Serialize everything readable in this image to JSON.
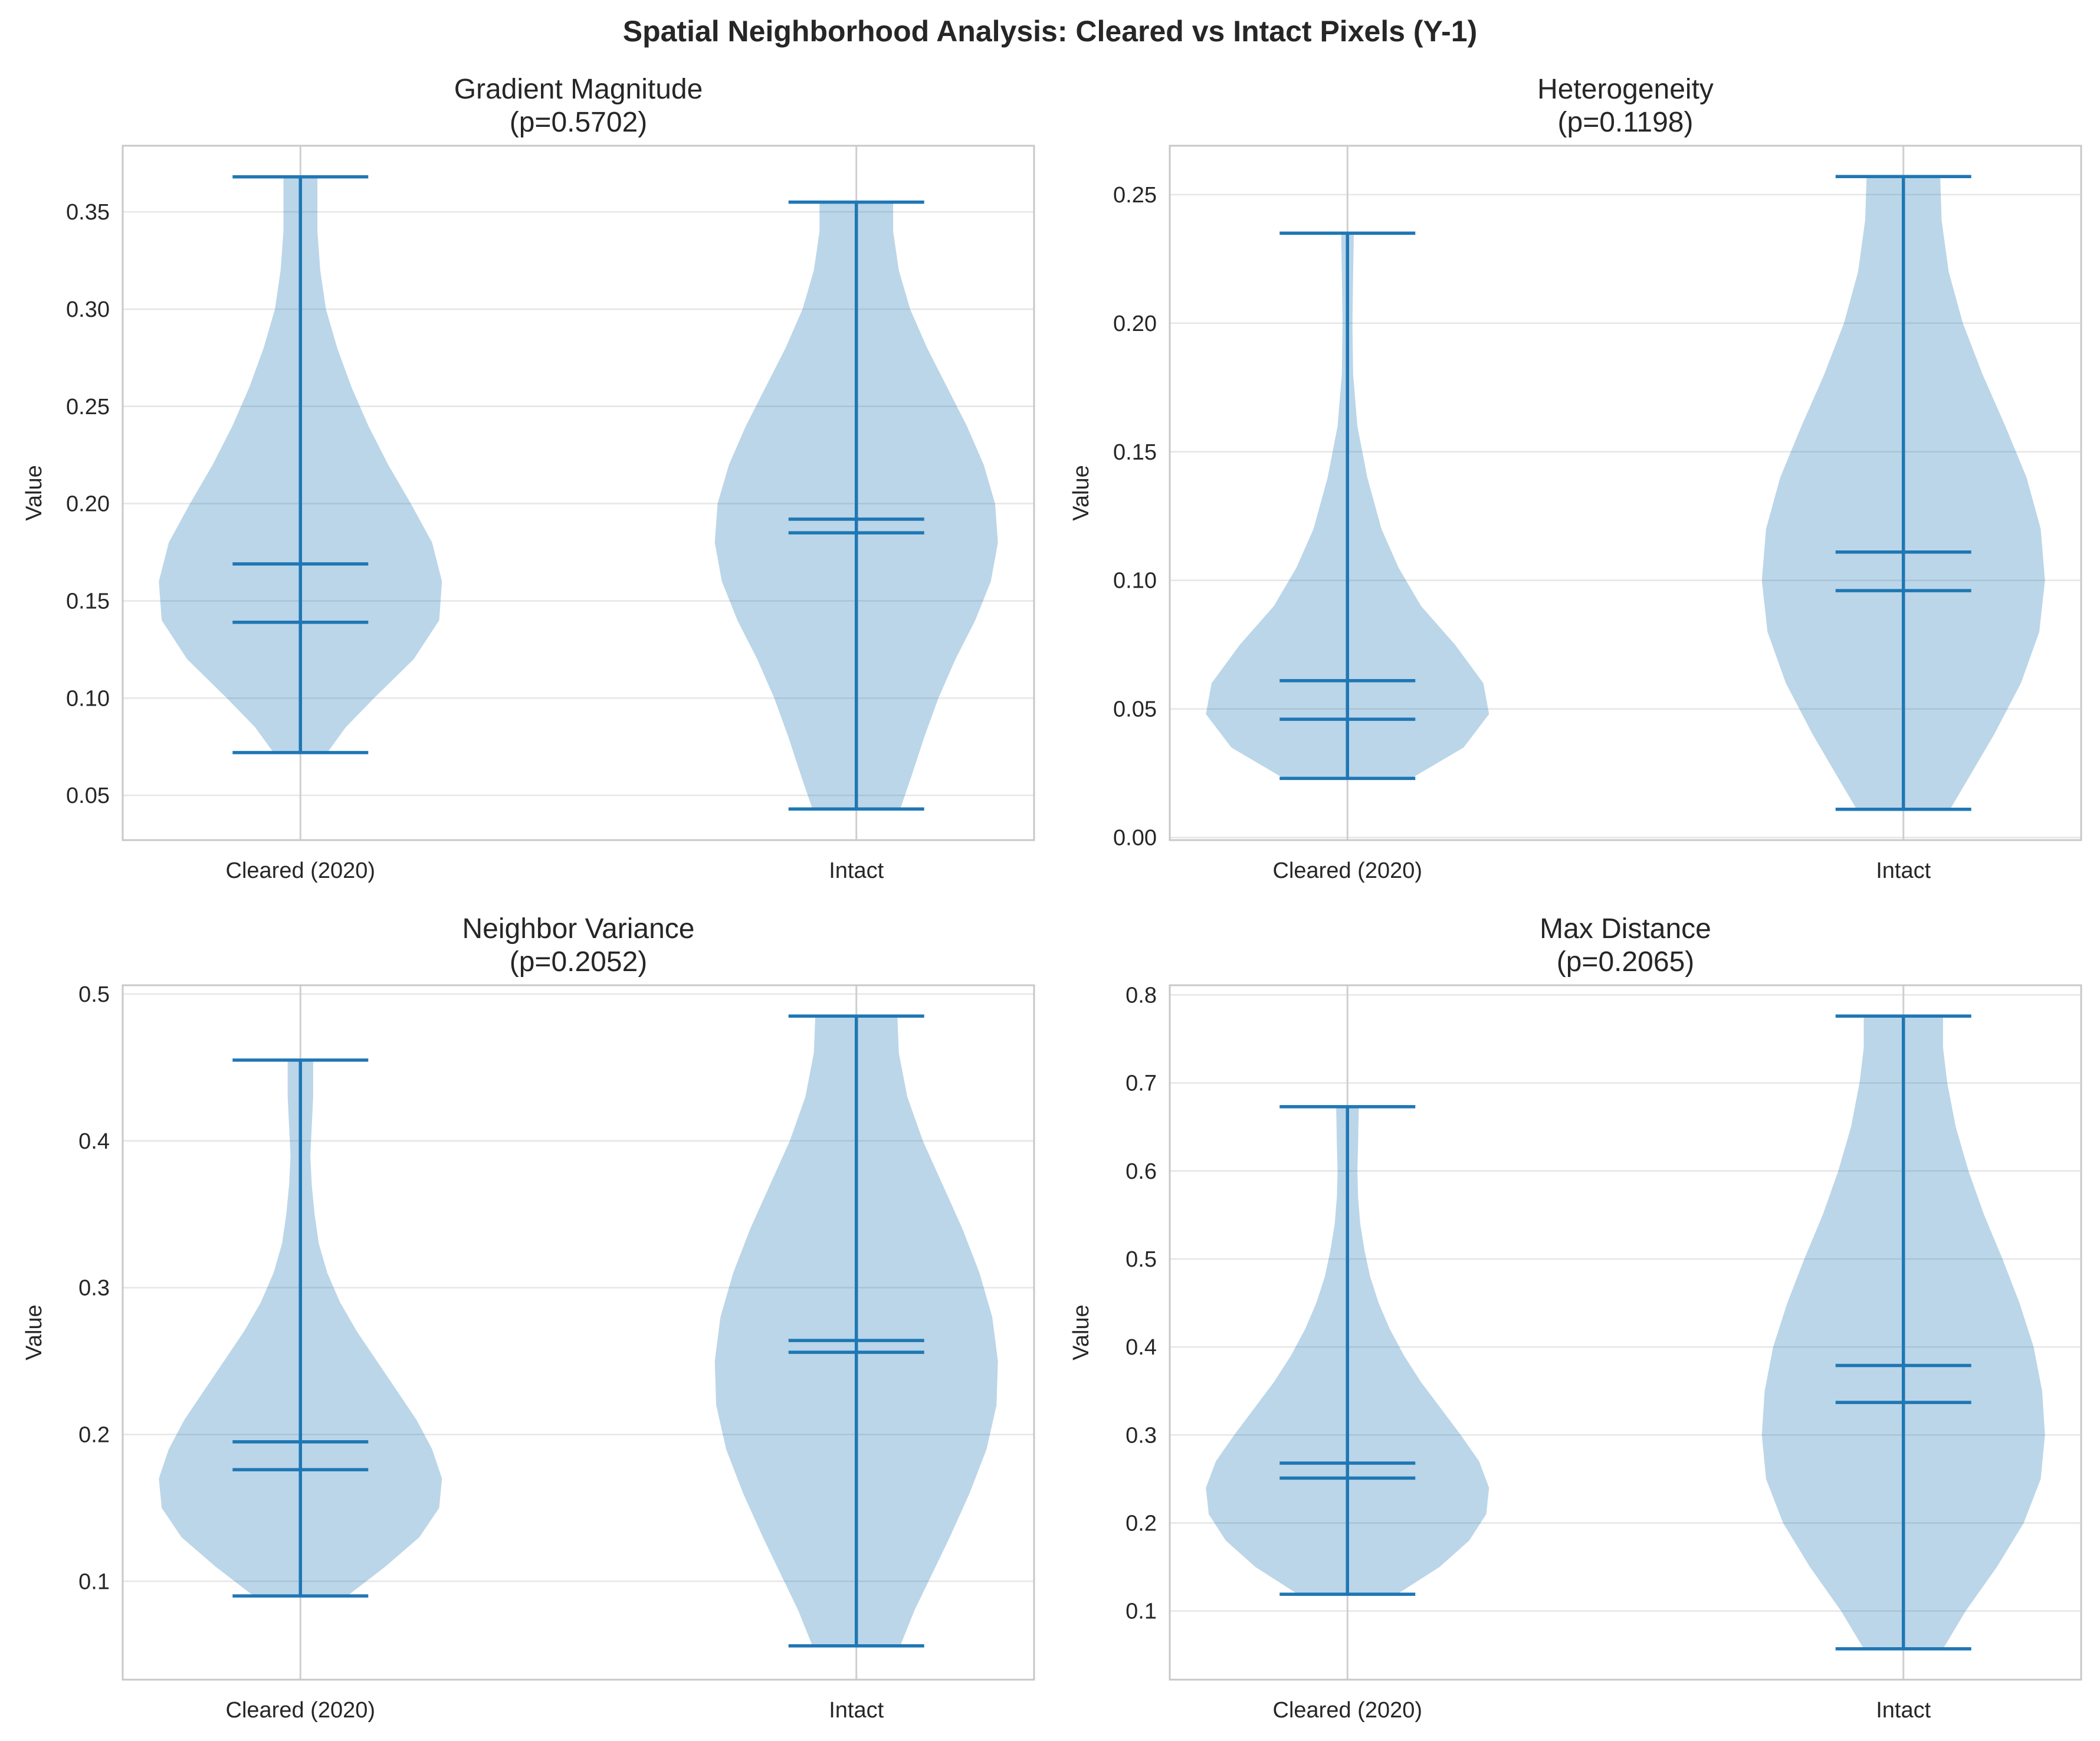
{
  "figure": {
    "suptitle": "Spatial Neighborhood Analysis: Cleared vs Intact Pixels (Y-1)"
  },
  "colors": {
    "violin_fill": "#1f77b4",
    "stat_lines": "#1f77b4",
    "grid": "#e6e6e6",
    "frame": "#c8c8c8",
    "text": "#262626"
  },
  "chart_data": [
    {
      "type": "violin",
      "title": "Gradient Magnitude",
      "subtitle": "(p=0.5702)",
      "ylabel": "Value",
      "categories": [
        "Cleared (2020)",
        "Intact"
      ],
      "ylim": [
        0.027,
        0.384
      ],
      "yticks": [
        0.05,
        0.1,
        0.15,
        0.2,
        0.25,
        0.3,
        0.35
      ],
      "yticklabels": [
        "0.05",
        "0.10",
        "0.15",
        "0.20",
        "0.25",
        "0.30",
        "0.35"
      ],
      "grid": true,
      "series": [
        {
          "min": 0.072,
          "max": 0.368,
          "mean": 0.169,
          "median": 0.139,
          "density": [
            [
              0.072,
              0.19
            ],
            [
              0.085,
              0.32
            ],
            [
              0.1,
              0.52
            ],
            [
              0.12,
              0.8
            ],
            [
              0.14,
              0.98
            ],
            [
              0.16,
              1.0
            ],
            [
              0.18,
              0.93
            ],
            [
              0.2,
              0.78
            ],
            [
              0.22,
              0.62
            ],
            [
              0.24,
              0.48
            ],
            [
              0.26,
              0.36
            ],
            [
              0.28,
              0.26
            ],
            [
              0.3,
              0.18
            ],
            [
              0.32,
              0.14
            ],
            [
              0.34,
              0.12
            ],
            [
              0.368,
              0.12
            ]
          ]
        },
        {
          "min": 0.043,
          "max": 0.355,
          "mean": 0.192,
          "median": 0.185,
          "density": [
            [
              0.043,
              0.31
            ],
            [
              0.06,
              0.39
            ],
            [
              0.08,
              0.48
            ],
            [
              0.1,
              0.58
            ],
            [
              0.12,
              0.7
            ],
            [
              0.14,
              0.84
            ],
            [
              0.16,
              0.95
            ],
            [
              0.18,
              1.0
            ],
            [
              0.2,
              0.98
            ],
            [
              0.22,
              0.9
            ],
            [
              0.24,
              0.78
            ],
            [
              0.26,
              0.64
            ],
            [
              0.28,
              0.5
            ],
            [
              0.3,
              0.38
            ],
            [
              0.32,
              0.3
            ],
            [
              0.34,
              0.26
            ],
            [
              0.355,
              0.26
            ]
          ]
        }
      ]
    },
    {
      "type": "violin",
      "title": "Heterogeneity",
      "subtitle": "(p=0.1198)",
      "ylabel": "Value",
      "categories": [
        "Cleared (2020)",
        "Intact"
      ],
      "ylim": [
        -0.001,
        0.269
      ],
      "yticks": [
        0.0,
        0.05,
        0.1,
        0.15,
        0.2,
        0.25
      ],
      "yticklabels": [
        "0.00",
        "0.05",
        "0.10",
        "0.15",
        "0.20",
        "0.25"
      ],
      "grid": true,
      "series": [
        {
          "min": 0.023,
          "max": 0.235,
          "mean": 0.061,
          "median": 0.046,
          "density": [
            [
              0.023,
              0.45
            ],
            [
              0.035,
              0.82
            ],
            [
              0.048,
              1.0
            ],
            [
              0.06,
              0.96
            ],
            [
              0.075,
              0.76
            ],
            [
              0.09,
              0.52
            ],
            [
              0.105,
              0.36
            ],
            [
              0.12,
              0.24
            ],
            [
              0.14,
              0.14
            ],
            [
              0.16,
              0.07
            ],
            [
              0.18,
              0.04
            ],
            [
              0.2,
              0.035
            ],
            [
              0.22,
              0.04
            ],
            [
              0.235,
              0.045
            ]
          ]
        },
        {
          "min": 0.011,
          "max": 0.257,
          "mean": 0.111,
          "median": 0.096,
          "density": [
            [
              0.011,
              0.33
            ],
            [
              0.025,
              0.48
            ],
            [
              0.04,
              0.64
            ],
            [
              0.06,
              0.83
            ],
            [
              0.08,
              0.96
            ],
            [
              0.1,
              1.0
            ],
            [
              0.12,
              0.97
            ],
            [
              0.14,
              0.87
            ],
            [
              0.16,
              0.72
            ],
            [
              0.18,
              0.56
            ],
            [
              0.2,
              0.42
            ],
            [
              0.22,
              0.32
            ],
            [
              0.24,
              0.27
            ],
            [
              0.257,
              0.26
            ]
          ]
        }
      ]
    },
    {
      "type": "violin",
      "title": "Neighbor Variance",
      "subtitle": "(p=0.2052)",
      "ylabel": "Value",
      "categories": [
        "Cleared (2020)",
        "Intact"
      ],
      "ylim": [
        0.033,
        0.506
      ],
      "yticks": [
        0.1,
        0.2,
        0.3,
        0.4,
        0.5
      ],
      "yticklabels": [
        "0.1",
        "0.2",
        "0.3",
        "0.4",
        "0.5"
      ],
      "grid": true,
      "series": [
        {
          "min": 0.09,
          "max": 0.455,
          "mean": 0.195,
          "median": 0.176,
          "density": [
            [
              0.09,
              0.33
            ],
            [
              0.11,
              0.6
            ],
            [
              0.13,
              0.84
            ],
            [
              0.15,
              0.98
            ],
            [
              0.17,
              1.0
            ],
            [
              0.19,
              0.93
            ],
            [
              0.21,
              0.82
            ],
            [
              0.23,
              0.68
            ],
            [
              0.25,
              0.54
            ],
            [
              0.27,
              0.4
            ],
            [
              0.29,
              0.28
            ],
            [
              0.31,
              0.19
            ],
            [
              0.33,
              0.13
            ],
            [
              0.35,
              0.1
            ],
            [
              0.37,
              0.08
            ],
            [
              0.39,
              0.07
            ],
            [
              0.41,
              0.08
            ],
            [
              0.43,
              0.09
            ],
            [
              0.455,
              0.09
            ]
          ]
        },
        {
          "min": 0.056,
          "max": 0.485,
          "mean": 0.264,
          "median": 0.256,
          "density": [
            [
              0.056,
              0.31
            ],
            [
              0.08,
              0.41
            ],
            [
              0.1,
              0.51
            ],
            [
              0.13,
              0.66
            ],
            [
              0.16,
              0.8
            ],
            [
              0.19,
              0.92
            ],
            [
              0.22,
              0.99
            ],
            [
              0.25,
              1.0
            ],
            [
              0.28,
              0.96
            ],
            [
              0.31,
              0.87
            ],
            [
              0.34,
              0.75
            ],
            [
              0.37,
              0.61
            ],
            [
              0.4,
              0.47
            ],
            [
              0.43,
              0.36
            ],
            [
              0.46,
              0.3
            ],
            [
              0.485,
              0.29
            ]
          ]
        }
      ]
    },
    {
      "type": "violin",
      "title": "Max Distance",
      "subtitle": "(p=0.2065)",
      "ylabel": "Value",
      "categories": [
        "Cleared (2020)",
        "Intact"
      ],
      "ylim": [
        0.022,
        0.811
      ],
      "yticks": [
        0.1,
        0.2,
        0.3,
        0.4,
        0.5,
        0.6,
        0.7,
        0.8
      ],
      "yticklabels": [
        "0.1",
        "0.2",
        "0.3",
        "0.4",
        "0.5",
        "0.6",
        "0.7",
        "0.8"
      ],
      "grid": true,
      "series": [
        {
          "min": 0.119,
          "max": 0.673,
          "mean": 0.268,
          "median": 0.251,
          "density": [
            [
              0.119,
              0.35
            ],
            [
              0.15,
              0.65
            ],
            [
              0.18,
              0.86
            ],
            [
              0.21,
              0.98
            ],
            [
              0.24,
              1.0
            ],
            [
              0.27,
              0.93
            ],
            [
              0.3,
              0.8
            ],
            [
              0.33,
              0.66
            ],
            [
              0.36,
              0.52
            ],
            [
              0.39,
              0.4
            ],
            [
              0.42,
              0.3
            ],
            [
              0.45,
              0.22
            ],
            [
              0.48,
              0.16
            ],
            [
              0.51,
              0.12
            ],
            [
              0.54,
              0.09
            ],
            [
              0.57,
              0.075
            ],
            [
              0.6,
              0.07
            ],
            [
              0.63,
              0.075
            ],
            [
              0.673,
              0.08
            ]
          ]
        },
        {
          "min": 0.057,
          "max": 0.776,
          "mean": 0.379,
          "median": 0.337,
          "density": [
            [
              0.057,
              0.28
            ],
            [
              0.1,
              0.44
            ],
            [
              0.15,
              0.66
            ],
            [
              0.2,
              0.85
            ],
            [
              0.25,
              0.97
            ],
            [
              0.3,
              1.0
            ],
            [
              0.35,
              0.98
            ],
            [
              0.4,
              0.92
            ],
            [
              0.45,
              0.82
            ],
            [
              0.5,
              0.7
            ],
            [
              0.55,
              0.57
            ],
            [
              0.6,
              0.46
            ],
            [
              0.65,
              0.37
            ],
            [
              0.7,
              0.31
            ],
            [
              0.74,
              0.28
            ],
            [
              0.776,
              0.28
            ]
          ]
        }
      ]
    }
  ]
}
